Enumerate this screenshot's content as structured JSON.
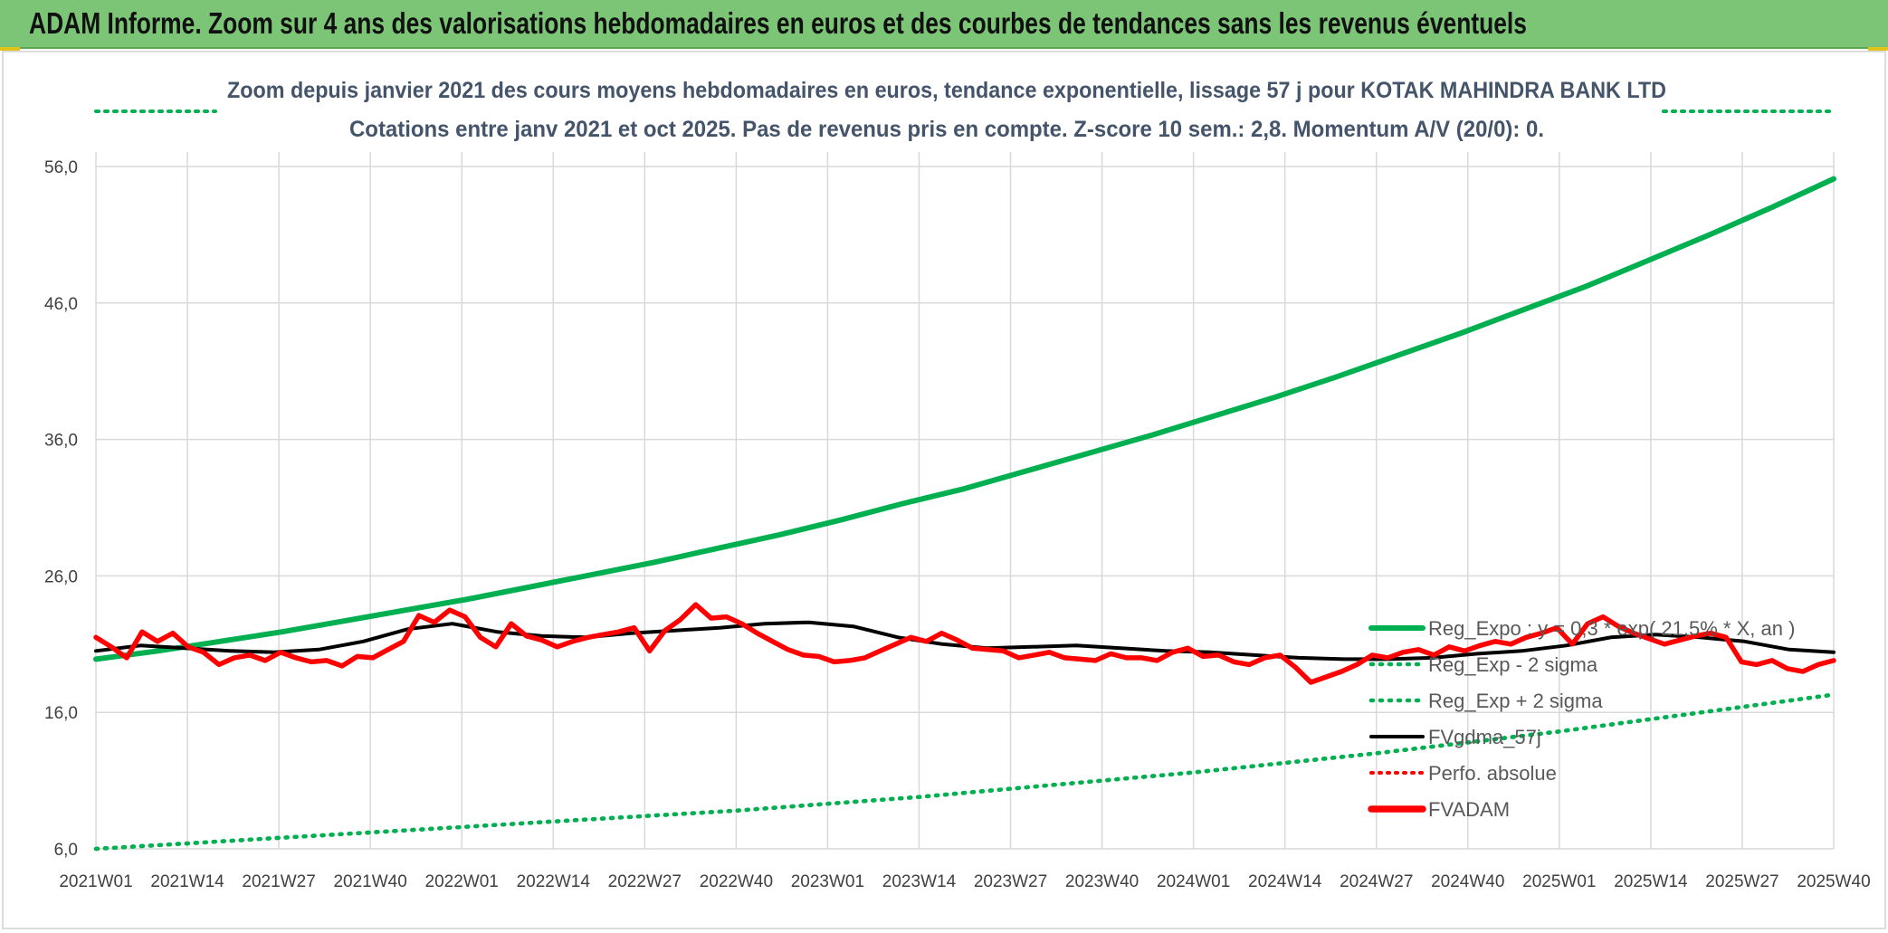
{
  "header": {
    "title": "ADAM Informe. Zoom sur 4 ans des valorisations hebdomadaires en euros et des courbes de tendances sans les revenus éventuels"
  },
  "chart_data": {
    "type": "line",
    "title_line1": "Zoom depuis janvier 2021 des cours moyens hebdomadaires en euros, tendance exponentielle, lissage 57 j pour KOTAK MAHINDRA BANK LTD",
    "title_line2": "Cotations entre janv 2021 et oct 2025. Pas de revenus pris en compte. Z-score 10 sem.: 2,8. Momentum A/V (20/0): 0.",
    "ylim": [
      6,
      56
    ],
    "y_ticks": [
      "56,0",
      "46,0",
      "36,0",
      "26,0",
      "16,0",
      "6,0"
    ],
    "y_tick_values": [
      56,
      46,
      36,
      26,
      16,
      6
    ],
    "x_ticks": [
      "2021W01",
      "2021W14",
      "2021W27",
      "2021W40",
      "2022W01",
      "2022W14",
      "2022W27",
      "2022W40",
      "2023W01",
      "2023W14",
      "2023W27",
      "2023W40",
      "2024W01",
      "2024W14",
      "2024W27",
      "2024W40",
      "2025W01",
      "2025W14",
      "2025W27",
      "2025W40"
    ],
    "grid": true,
    "legend_position": "right",
    "colors": {
      "green": "#00b050",
      "red": "#ff0000",
      "black": "#000000",
      "header": "#7cc576"
    },
    "series": [
      {
        "name": "Reg_Expo : y = 0,3 * exp( 21,5% * X, an )",
        "style": "solid-green",
        "values": [
          19.9,
          20.5,
          21.2,
          21.9,
          22.7,
          23.5,
          24.3,
          25.2,
          26.1,
          27.0,
          28.0,
          29.0,
          30.1,
          31.3,
          32.4,
          33.7,
          35.0,
          36.3,
          37.7,
          39.1,
          40.6,
          42.2,
          43.8,
          45.5,
          47.2,
          49.1,
          51.0,
          53.0,
          55.1
        ]
      },
      {
        "name": "Reg_Exp - 2 sigma",
        "style": "dotted-green",
        "values": [
          6.0,
          6.4,
          6.8,
          7.2,
          7.6,
          8.0,
          8.4,
          8.8,
          9.3,
          9.8,
          10.4,
          11.0,
          11.6,
          12.3,
          13.0,
          13.8,
          14.6,
          15.5,
          16.4,
          17.3
        ]
      },
      {
        "name": "Reg_Exp + 2 sigma",
        "style": "dotted-green",
        "values": [
          6.0,
          6.4,
          6.8,
          7.2,
          7.6,
          8.0,
          8.4,
          8.8,
          9.3,
          9.8,
          10.4,
          11.0,
          11.6,
          12.3,
          13.0,
          13.8,
          14.6,
          15.5,
          16.4,
          17.3
        ]
      },
      {
        "name": "FVgdma_57j",
        "style": "solid-black",
        "values": [
          20.5,
          20.9,
          20.7,
          20.5,
          20.4,
          20.6,
          21.2,
          22.1,
          22.5,
          21.9,
          21.6,
          21.5,
          21.8,
          22.0,
          22.2,
          22.5,
          22.6,
          22.3,
          21.5,
          21.0,
          20.7,
          20.8,
          20.9,
          20.7,
          20.5,
          20.4,
          20.2,
          20.0,
          19.9,
          19.9,
          20.0,
          20.3,
          20.5,
          20.9,
          21.5,
          21.7,
          21.5,
          21.2,
          20.6,
          20.4
        ]
      },
      {
        "name": "Perfo. absolue",
        "style": "dotted-red",
        "values": []
      },
      {
        "name": "FVADAM",
        "style": "solid-red-thick",
        "values": [
          21.5,
          20.8,
          20.0,
          21.9,
          21.2,
          21.8,
          20.8,
          20.4,
          19.5,
          20.0,
          20.2,
          19.8,
          20.4,
          20.0,
          19.7,
          19.8,
          19.4,
          20.1,
          20.0,
          20.6,
          21.2,
          23.1,
          22.6,
          23.5,
          23.0,
          21.5,
          20.8,
          22.5,
          21.6,
          21.3,
          20.8,
          21.2,
          21.5,
          21.7,
          21.9,
          22.2,
          20.5,
          22.0,
          22.8,
          23.9,
          22.9,
          23.0,
          22.5,
          21.8,
          21.2,
          20.6,
          20.2,
          20.1,
          19.7,
          19.8,
          20.0,
          20.5,
          21.0,
          21.5,
          21.2,
          21.8,
          21.3,
          20.7,
          20.6,
          20.5,
          20.0,
          20.2,
          20.4,
          20.0,
          19.9,
          19.8,
          20.3,
          20.0,
          20.0,
          19.8,
          20.4,
          20.7,
          20.1,
          20.2,
          19.7,
          19.5,
          20.0,
          20.2,
          19.3,
          18.2,
          18.6,
          19.0,
          19.5,
          20.2,
          20.0,
          20.4,
          20.6,
          20.2,
          20.8,
          20.5,
          20.9,
          21.2,
          21.0,
          21.5,
          21.8,
          22.2,
          21.0,
          22.5,
          23.0,
          22.3,
          21.8,
          21.4,
          21.0,
          21.3,
          21.6,
          21.8,
          21.5,
          19.7,
          19.5,
          19.8,
          19.2,
          19.0,
          19.5,
          19.8
        ]
      }
    ]
  }
}
